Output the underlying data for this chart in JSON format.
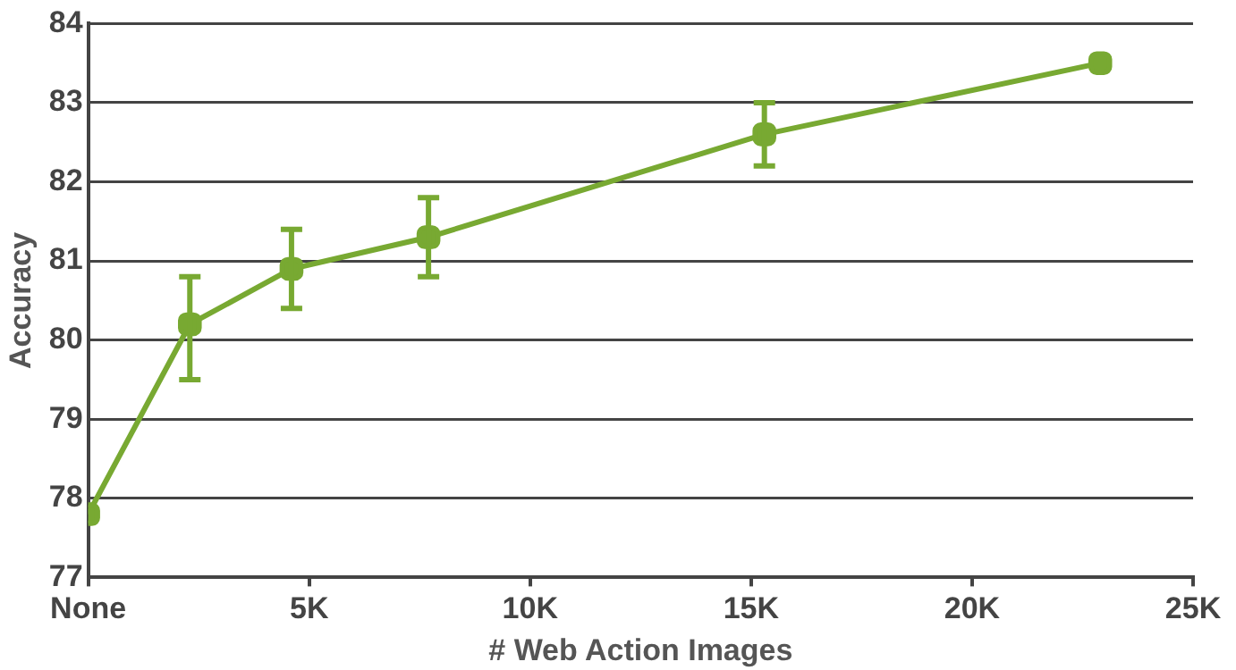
{
  "chart_data": {
    "type": "line",
    "xlabel": "# Web Action Images",
    "ylabel": "Accuracy",
    "x": [
      0,
      2300,
      4600,
      7700,
      15300,
      22900
    ],
    "series": [
      {
        "color": "#78a932",
        "values": [
          77.8,
          80.2,
          80.9,
          81.3,
          82.6,
          83.5
        ],
        "errors": [
          null,
          [
            79.5,
            80.8
          ],
          [
            80.4,
            81.4
          ],
          [
            80.8,
            81.8
          ],
          [
            82.2,
            83.0
          ],
          null
        ]
      }
    ],
    "xlim": [
      0,
      25000
    ],
    "xticks": [
      {
        "value": 0,
        "label": "None"
      },
      {
        "value": 5000,
        "label": "5K"
      },
      {
        "value": 10000,
        "label": "10K"
      },
      {
        "value": 15000,
        "label": "15K"
      },
      {
        "value": 20000,
        "label": "20K"
      },
      {
        "value": 25000,
        "label": "25K"
      }
    ],
    "ylim": [
      77,
      84
    ],
    "yticks": [
      77,
      78,
      79,
      80,
      81,
      82,
      83,
      84
    ],
    "grid": "y",
    "legend": false,
    "marker": "square",
    "line_style": "solid"
  }
}
